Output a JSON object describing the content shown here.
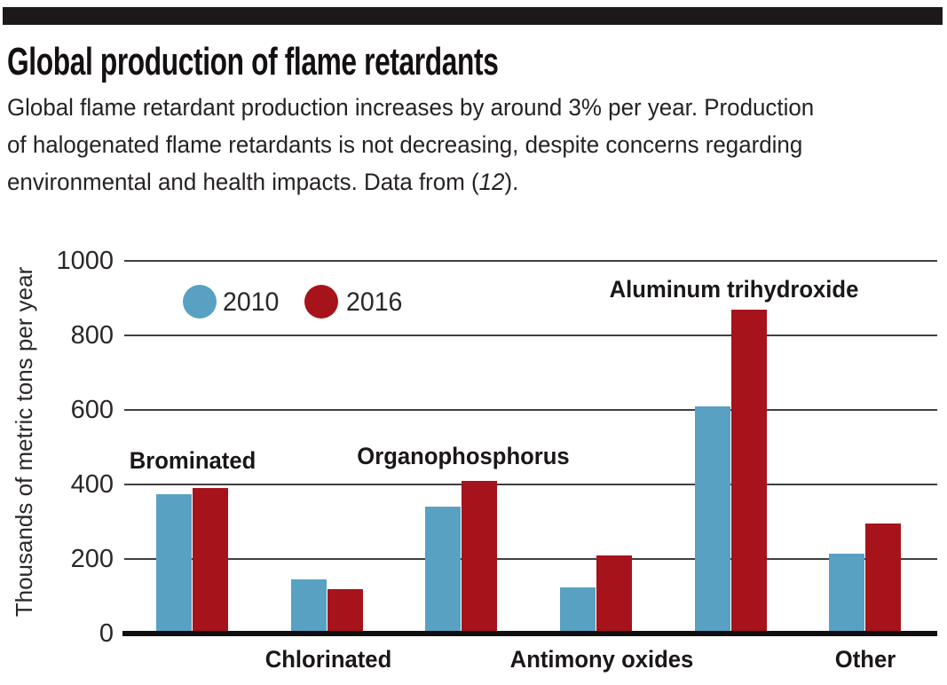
{
  "header": {
    "title": "Global production of flame retardants",
    "subtitle": {
      "line1": "Global flame retardant production increases by around 3% per year. Production",
      "line2": "of halogenated flame retardants is not decreasing, despite concerns regarding",
      "line3_before": "environmental and health impacts. Data from (",
      "line3_ref": "12",
      "line3_after": ")."
    }
  },
  "chart_data": {
    "type": "bar",
    "title": "Global production of flame retardants",
    "xlabel": "",
    "ylabel": "Thousands of metric tons per year",
    "ylim": [
      0,
      1000
    ],
    "ytick_values": [
      0,
      200,
      400,
      600,
      800,
      1000
    ],
    "ytick_labels": [
      "0",
      "200",
      "400",
      "600",
      "800",
      "1000"
    ],
    "grid": "horizontal",
    "legend_position": "top-left-inside",
    "categories": [
      "Brominated",
      "Chlorinated",
      "Organophosphorus",
      "Antimony oxides",
      "Aluminum trihydroxide",
      "Other"
    ],
    "category_label_placement": [
      "above",
      "below",
      "above",
      "below",
      "above",
      "below"
    ],
    "series": [
      {
        "name": "2010",
        "color": "#58A1C2",
        "values": [
          375,
          145,
          340,
          125,
          610,
          215
        ]
      },
      {
        "name": "2016",
        "color": "#A6131B",
        "values": [
          390,
          120,
          410,
          210,
          870,
          295
        ]
      }
    ]
  }
}
